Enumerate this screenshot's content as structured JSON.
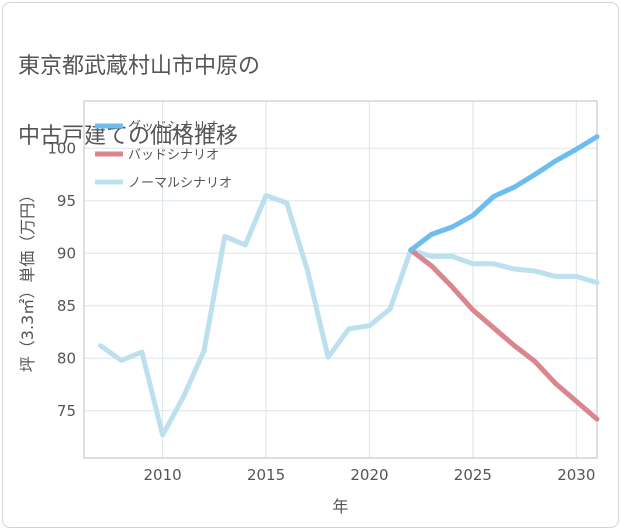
{
  "title": {
    "line1": "東京都武蔵村山市中原の",
    "line2": "中古戸建ての価格推移"
  },
  "chart_data": {
    "type": "line",
    "xlabel": "年",
    "ylabel": "坪（3.3㎡）単価（万円）",
    "xlim": [
      2006.2,
      2031
    ],
    "ylim": [
      70.5,
      104.5
    ],
    "x_ticks": [
      2010,
      2015,
      2020,
      2025,
      2030
    ],
    "y_ticks": [
      75,
      80,
      85,
      90,
      95,
      100
    ],
    "grid": true,
    "legend_position": "top-left",
    "series": [
      {
        "name": "グッドシナリオ",
        "color": "#6dbdf0",
        "x": [
          2022,
          2023,
          2024,
          2025,
          2026,
          2027,
          2028,
          2029,
          2030,
          2031
        ],
        "y": [
          90.3,
          91.8,
          92.5,
          93.6,
          95.4,
          96.3,
          97.5,
          98.8,
          99.9,
          101.1
        ]
      },
      {
        "name": "バッドシナリオ",
        "color": "#d9868f",
        "x": [
          2022,
          2023,
          2024,
          2025,
          2026,
          2027,
          2028,
          2029,
          2030,
          2031
        ],
        "y": [
          90.3,
          88.8,
          86.8,
          84.6,
          82.9,
          81.2,
          79.7,
          77.6,
          75.9,
          74.2
        ]
      },
      {
        "name": "ノーマルシナリオ",
        "color": "#bde0ee",
        "x": [
          2007,
          2008,
          2009,
          2010,
          2011,
          2012,
          2013,
          2014,
          2015,
          2016,
          2017,
          2018,
          2019,
          2020,
          2021,
          2022,
          2023,
          2024,
          2025,
          2026,
          2027,
          2028,
          2029,
          2030,
          2031
        ],
        "y": [
          81.2,
          79.8,
          80.6,
          72.7,
          76.3,
          80.7,
          91.6,
          90.8,
          95.5,
          94.8,
          88.4,
          80.1,
          82.8,
          83.1,
          84.7,
          90.3,
          89.7,
          89.7,
          89.0,
          89.0,
          88.5,
          88.3,
          87.8,
          87.8,
          87.2
        ]
      }
    ]
  }
}
